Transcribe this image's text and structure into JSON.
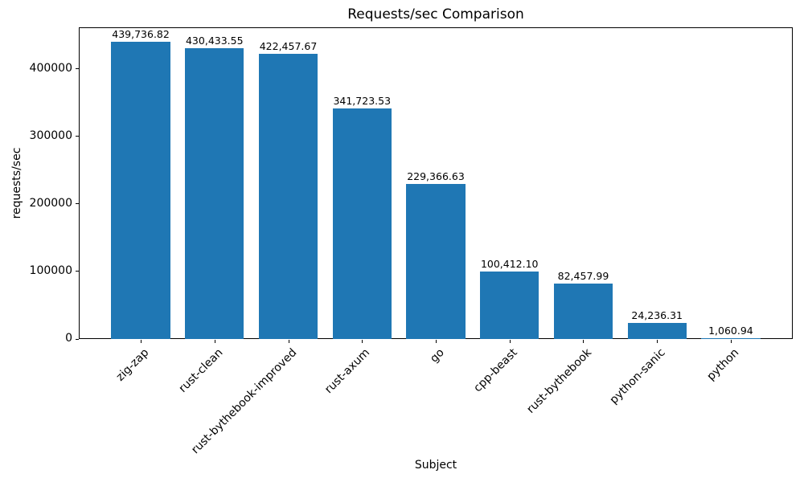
{
  "chart_data": {
    "type": "bar",
    "title": "Requests/sec Comparison",
    "xlabel": "Subject",
    "ylabel": "requests/sec",
    "categories": [
      "zig-zap",
      "rust-clean",
      "rust-bythebook-improved",
      "rust-axum",
      "go",
      "cpp-beast",
      "rust-bythebook",
      "python-sanic",
      "python"
    ],
    "values": [
      439736.82,
      430433.55,
      422457.67,
      341723.53,
      229366.63,
      100412.1,
      82457.99,
      24236.31,
      1060.94
    ],
    "value_labels": [
      "439,736.82",
      "430,433.55",
      "422,457.67",
      "341,723.53",
      "229,366.63",
      "100,412.10",
      "82,457.99",
      "24,236.31",
      "1,060.94"
    ],
    "yticks": [
      0,
      100000,
      200000,
      300000,
      400000
    ],
    "ytick_labels": [
      "0",
      "100000",
      "200000",
      "300000",
      "400000"
    ],
    "ylim": [
      0,
      461724
    ],
    "bar_color": "#1f77b4",
    "grid": false,
    "legend_position": "none",
    "x_tick_rotation": 45
  }
}
